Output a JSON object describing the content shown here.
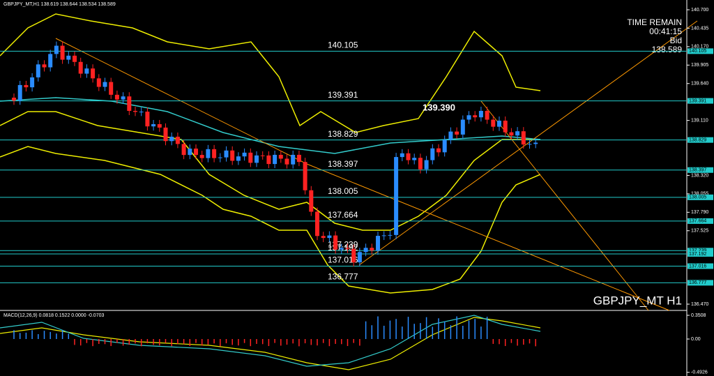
{
  "header": {
    "title": "GBPJPY_MT,H1  138.619 138.644 138.534 138.589"
  },
  "info": {
    "time_label": "TIME REMAIN",
    "time": "00:41:15",
    "bid_label": "Bid",
    "bid": "138.589"
  },
  "symbol": "GBPJPY_MT H1",
  "marker": "139.390",
  "price_axis": {
    "lim": [
      136.47,
      140.7
    ],
    "ticks": [
      {
        "value": 140.7,
        "label": "140.700"
      },
      {
        "value": 140.435,
        "label": "140.435"
      },
      {
        "value": 140.17,
        "label": "140.170"
      },
      {
        "value": 139.905,
        "label": "139.905"
      },
      {
        "value": 139.64,
        "label": "139.640"
      },
      {
        "value": 139.11,
        "label": "139.110"
      },
      {
        "value": 138.32,
        "label": "138.320"
      },
      {
        "value": 138.055,
        "label": "138.055"
      },
      {
        "value": 137.79,
        "label": "137.790"
      },
      {
        "value": 137.525,
        "label": "137.525"
      },
      {
        "value": 136.47,
        "label": "136.470"
      }
    ]
  },
  "levels": [
    {
      "value": 140.105,
      "label": "140.105"
    },
    {
      "value": 139.391,
      "label": "139.391"
    },
    {
      "value": 138.829,
      "label": "138.829"
    },
    {
      "value": 138.397,
      "label": "138.397"
    },
    {
      "value": 138.005,
      "label": "138.005"
    },
    {
      "value": 137.664,
      "label": "137.664"
    },
    {
      "value": 137.239,
      "label": "137.239"
    },
    {
      "value": 137.192,
      "label": "137.192"
    },
    {
      "value": 137.016,
      "label": "137.016"
    },
    {
      "value": 136.777,
      "label": "136.777"
    }
  ],
  "macd": {
    "title": "MACD(12,26,9) 0.0818 0.1522 0.0000 -0.0703",
    "ticks": [
      {
        "value": 0.3508,
        "label": "0.3508"
      },
      {
        "value": 0,
        "label": "0.00"
      },
      {
        "value": -0.4926,
        "label": "-0.4926"
      }
    ]
  }
}
